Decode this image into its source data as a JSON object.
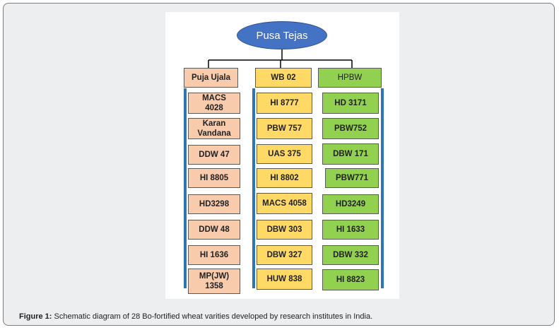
{
  "diagram": {
    "root": "Pusa Tejas",
    "columns": [
      {
        "header": "Puja Ujala",
        "items": [
          "MACS\n4028",
          "Karan\nVandana",
          "DDW 47",
          "HI 8805",
          "HD3298",
          "DDW 48",
          "HI 1636",
          "MP(JW)\n1358"
        ]
      },
      {
        "header": "WB 02",
        "items": [
          "HI 8777",
          "PBW 757",
          "UAS 375",
          "HI 8802",
          "MACS 4058",
          "DBW 303",
          "DBW 327",
          "HUW 838"
        ]
      },
      {
        "header": "HPBW",
        "items": [
          "HD 3171",
          "PBW752",
          "DBW 171",
          "PBW771",
          "HD3249",
          "HI 1633",
          "DBW 332",
          "HI 8823"
        ]
      }
    ],
    "colors": {
      "root": "#4472c4",
      "column_1": "#f8cbad",
      "column_2": "#ffd966",
      "column_3": "#92d050",
      "vertical_bar": "#2e75b6",
      "connector": "#000000"
    }
  },
  "caption": {
    "label": "Figure 1:",
    "text": " Schematic diagram of 28 Bo-fortified wheat varities developed by research institutes in India."
  }
}
